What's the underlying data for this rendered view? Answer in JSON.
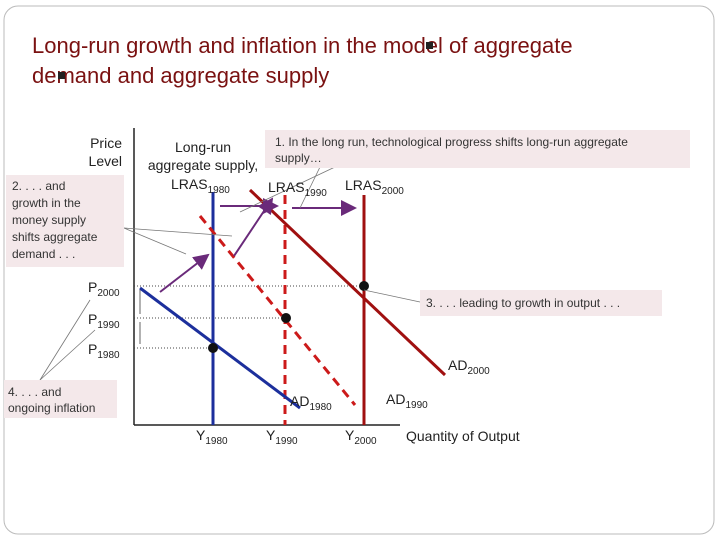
{
  "title": {
    "lines": [
      "Long-run growth and inflation in the model of aggregate",
      "demand and aggregate supply"
    ]
  },
  "axes": {
    "y_label": [
      "Price",
      "Level"
    ],
    "x_label": "Quantity of Output"
  },
  "curves": {
    "lras_caption": [
      "Long-run",
      "aggregate supply,"
    ],
    "lras1980": {
      "main": "LRAS",
      "sub": "1980"
    },
    "lras1990": {
      "main": "LRAS",
      "sub": "1990"
    },
    "lras2000": {
      "main": "LRAS",
      "sub": "2000"
    },
    "ad1980": {
      "main": "AD",
      "sub": "1980"
    },
    "ad1990": {
      "main": "AD",
      "sub": "1990"
    },
    "ad2000": {
      "main": "AD",
      "sub": "2000"
    }
  },
  "prices": [
    {
      "main": "P",
      "sub": "2000"
    },
    {
      "main": "P",
      "sub": "1990"
    },
    {
      "main": "P",
      "sub": "1980"
    }
  ],
  "outputs": [
    {
      "main": "Y",
      "sub": "1980"
    },
    {
      "main": "Y",
      "sub": "1990"
    },
    {
      "main": "Y",
      "sub": "2000"
    }
  ],
  "notes": [
    [
      "1. In the long run, technological progress shifts long-run aggregate",
      "supply…"
    ],
    [
      "2. . . . and",
      "growth in the",
      "money supply",
      "shifts aggregate",
      "demand . . ."
    ],
    [
      "3. . . . leading to growth in output . . ."
    ],
    [
      "4. . . . and",
      "ongoing inflation"
    ]
  ]
}
